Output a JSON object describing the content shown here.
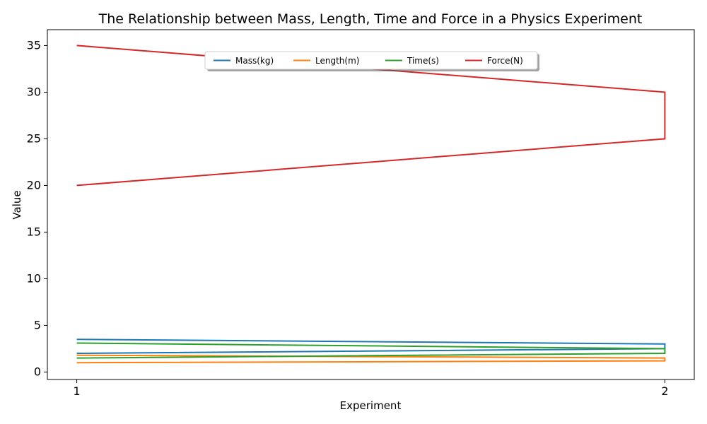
{
  "chart_data": {
    "type": "line",
    "title": "The Relationship between Mass, Length, Time and Force in a Physics Experiment",
    "xlabel": "Experiment",
    "ylabel": "Value",
    "x_ticks": [
      "1",
      "2"
    ],
    "y_ticks": [
      "0",
      "5",
      "10",
      "15",
      "20",
      "25",
      "30",
      "35"
    ],
    "xlim": [
      0.95,
      2.05
    ],
    "ylim": [
      -0.8,
      36.7
    ],
    "grid": false,
    "legend_position": "upper center",
    "series": [
      {
        "name": "Mass(kg)",
        "color": "#1f77b4",
        "x": [
          1,
          2,
          2,
          1
        ],
        "y": [
          2.0,
          2.5,
          3.0,
          3.5
        ]
      },
      {
        "name": "Length(m)",
        "color": "#ff7f0e",
        "x": [
          1,
          2,
          2,
          1
        ],
        "y": [
          1.0,
          1.2,
          1.5,
          1.8
        ]
      },
      {
        "name": "Time(s)",
        "color": "#2ca02c",
        "x": [
          1,
          2,
          2,
          1
        ],
        "y": [
          1.5,
          2.0,
          2.5,
          3.1
        ]
      },
      {
        "name": "Force(N)",
        "color": "#d62728",
        "x": [
          1,
          2,
          2,
          1
        ],
        "y": [
          20,
          25,
          30,
          35
        ]
      }
    ]
  }
}
